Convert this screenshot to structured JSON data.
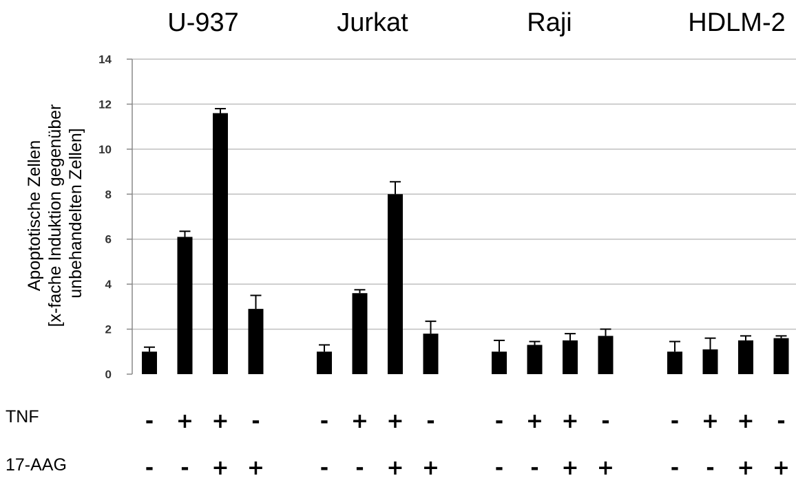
{
  "chart_data": {
    "type": "bar",
    "ylabel_lines": [
      "Apoptotische Zellen",
      "[x-fache Induktion gegenüber",
      "unbehandelten Zellen]"
    ],
    "ylim": [
      0,
      14
    ],
    "yticks": [
      0,
      2,
      4,
      6,
      8,
      10,
      12,
      14
    ],
    "grid": true,
    "row_labels": [
      "TNF",
      "17-AAG"
    ],
    "groups": [
      {
        "title": "U-937",
        "values": [
          1.0,
          6.1,
          11.6,
          2.9
        ],
        "errors": [
          0.2,
          0.25,
          0.2,
          0.6
        ],
        "tnf": [
          "-",
          "+",
          "+",
          "-"
        ],
        "aag": [
          "-",
          "-",
          "+",
          "+"
        ]
      },
      {
        "title": "Jurkat",
        "values": [
          1.0,
          3.6,
          8.0,
          1.8
        ],
        "errors": [
          0.3,
          0.15,
          0.55,
          0.55
        ],
        "tnf": [
          "-",
          "+",
          "+",
          "-"
        ],
        "aag": [
          "-",
          "-",
          "+",
          "+"
        ]
      },
      {
        "title": "Raji",
        "values": [
          1.0,
          1.3,
          1.5,
          1.7
        ],
        "errors": [
          0.5,
          0.15,
          0.3,
          0.3
        ],
        "tnf": [
          "-",
          "+",
          "+",
          "-"
        ],
        "aag": [
          "-",
          "-",
          "+",
          "+"
        ]
      },
      {
        "title": "HDLM-2",
        "values": [
          1.0,
          1.1,
          1.5,
          1.6
        ],
        "errors": [
          0.45,
          0.5,
          0.2,
          0.1
        ],
        "tnf": [
          "-",
          "+",
          "+",
          "-"
        ],
        "aag": [
          "-",
          "-",
          "+",
          "+"
        ]
      }
    ],
    "colors": {
      "bar": "#000000",
      "grid": "#bfbfbf",
      "axis": "#888888"
    }
  }
}
